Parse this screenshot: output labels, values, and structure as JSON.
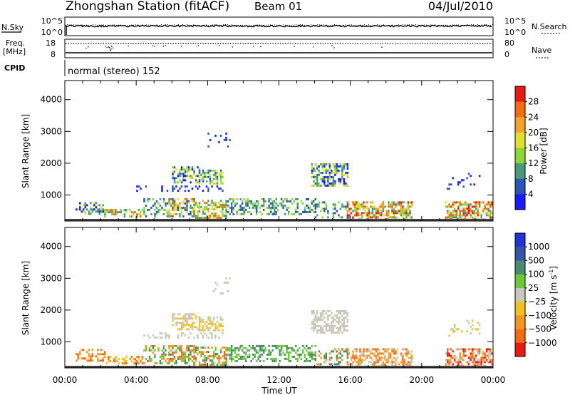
{
  "header": {
    "station": "Zhongshan Station (fitACF)",
    "beam": "Beam 01",
    "date": "04/Jul/2010"
  },
  "status_panels": {
    "nsky_label": "N.Sky",
    "nsearch_label": "N.Search",
    "freq_label_1": "Freq.",
    "freq_label_2": "[MHz]",
    "nave_label": "Nave",
    "cpid_label": "CPID",
    "cpid_text": "normal (stereo) 152",
    "nsky_ticks": [
      "10^5",
      "10^0"
    ],
    "nsearch_ticks": [
      "10^5",
      "10^0"
    ],
    "freq_ticks": [
      "18",
      "8"
    ],
    "nave_ticks": [
      "80",
      "0"
    ]
  },
  "chart_data": [
    {
      "type": "heatmap",
      "name": "power",
      "ylabel": "Slant Range [km]",
      "xlabel": "Time UT",
      "x_range_hours": [
        0,
        24
      ],
      "ylim": [
        180,
        4600
      ],
      "x_ticks": [
        "00:00",
        "04:00",
        "08:00",
        "12:00",
        "16:00",
        "20:00",
        "00:00"
      ],
      "y_ticks": [
        1000,
        2000,
        3000,
        4000
      ],
      "colorbar": {
        "label": "Power [dB]",
        "ticks": [
          "4",
          "8",
          "12",
          "16",
          "20",
          "24",
          "28"
        ],
        "colors": [
          "#1a1aff",
          "#2a55b5",
          "#4a9a78",
          "#8ed636",
          "#e0e030",
          "#f4a42a",
          "#f56a14",
          "#e81a14"
        ]
      }
    },
    {
      "type": "heatmap",
      "name": "velocity",
      "ylabel": "Slant Range [km]",
      "xlabel": "Time UT",
      "x_range_hours": [
        0,
        24
      ],
      "ylim": [
        180,
        4600
      ],
      "x_ticks": [
        "00:00",
        "04:00",
        "08:00",
        "12:00",
        "16:00",
        "20:00",
        "00:00"
      ],
      "y_ticks": [
        1000,
        2000,
        3000,
        4000
      ],
      "colorbar": {
        "label": "Velocity [m s",
        "label_sup": "-1",
        "label_end": "]",
        "ticks": [
          "1000",
          "500",
          "100",
          "25",
          "−25",
          "−100",
          "−500",
          "−1000"
        ],
        "colors": [
          "#2233d6",
          "#3555a8",
          "#4a8a6e",
          "#6cc838",
          "#c8c8b8",
          "#f4c020",
          "#f49620",
          "#f56a14",
          "#e81a14"
        ]
      }
    }
  ],
  "scatter_regions": [
    {
      "t": [
        0.6,
        2.2
      ],
      "r": [
        420,
        780
      ],
      "d": 0.45,
      "p": [
        0,
        2,
        4
      ],
      "v": [
        6,
        7
      ]
    },
    {
      "t": [
        2.2,
        4.4
      ],
      "r": [
        300,
        560
      ],
      "d": 0.5,
      "p": [
        2,
        3,
        4,
        6
      ],
      "v": [
        5,
        6,
        7
      ]
    },
    {
      "t": [
        4.4,
        5.8
      ],
      "r": [
        300,
        900
      ],
      "d": 0.35,
      "p": [
        1,
        2,
        3
      ],
      "v": [
        2,
        3,
        6
      ]
    },
    {
      "t": [
        5.8,
        7.2
      ],
      "r": [
        300,
        900
      ],
      "d": 0.55,
      "p": [
        1,
        2,
        4,
        6
      ],
      "v": [
        2,
        3,
        6,
        7
      ]
    },
    {
      "t": [
        7.2,
        9.0
      ],
      "r": [
        250,
        850
      ],
      "d": 0.55,
      "p": [
        2,
        3,
        4,
        6
      ],
      "v": [
        2,
        3,
        6,
        7
      ]
    },
    {
      "t": [
        9.0,
        12.5
      ],
      "r": [
        400,
        900
      ],
      "d": 0.45,
      "p": [
        1,
        2,
        3
      ],
      "v": [
        2,
        3
      ]
    },
    {
      "t": [
        12.5,
        14.0
      ],
      "r": [
        400,
        900
      ],
      "d": 0.35,
      "p": [
        1,
        2,
        3
      ],
      "v": [
        2,
        3
      ]
    },
    {
      "t": [
        14.0,
        15.8
      ],
      "r": [
        300,
        800
      ],
      "d": 0.3,
      "p": [
        1,
        2,
        3
      ],
      "v": [
        2,
        6
      ]
    },
    {
      "t": [
        15.8,
        19.4
      ],
      "r": [
        220,
        800
      ],
      "d": 0.55,
      "p": [
        2,
        3,
        4,
        5,
        6,
        7
      ],
      "v": [
        4,
        6,
        7
      ]
    },
    {
      "t": [
        21.3,
        23.9
      ],
      "r": [
        220,
        800
      ],
      "d": 0.55,
      "p": [
        2,
        3,
        4,
        6,
        7
      ],
      "v": [
        4,
        6,
        7,
        8
      ]
    },
    {
      "t": [
        6.0,
        7.5
      ],
      "r": [
        1400,
        1900
      ],
      "d": 0.5,
      "p": [
        0,
        1,
        2,
        3,
        4
      ],
      "v": [
        4,
        5
      ]
    },
    {
      "t": [
        7.5,
        8.8
      ],
      "r": [
        1350,
        1800
      ],
      "d": 0.55,
      "p": [
        1,
        2,
        3,
        4
      ],
      "v": [
        4,
        5
      ]
    },
    {
      "t": [
        4.0,
        8.8
      ],
      "r": [
        1150,
        1300
      ],
      "d": 0.25,
      "p": [
        0,
        1
      ],
      "v": [
        4
      ]
    },
    {
      "t": [
        13.8,
        15.8
      ],
      "r": [
        1300,
        2000
      ],
      "d": 0.55,
      "p": [
        0,
        1,
        2,
        3,
        4
      ],
      "v": [
        4
      ]
    },
    {
      "t": [
        21.4,
        23.2
      ],
      "r": [
        1200,
        1700
      ],
      "d": 0.15,
      "p": [
        0,
        1
      ],
      "v": [
        4,
        5
      ]
    },
    {
      "t": [
        8.0,
        9.2
      ],
      "r": [
        2500,
        3100
      ],
      "d": 0.08,
      "p": [
        0,
        1
      ],
      "v": [
        4
      ]
    }
  ]
}
